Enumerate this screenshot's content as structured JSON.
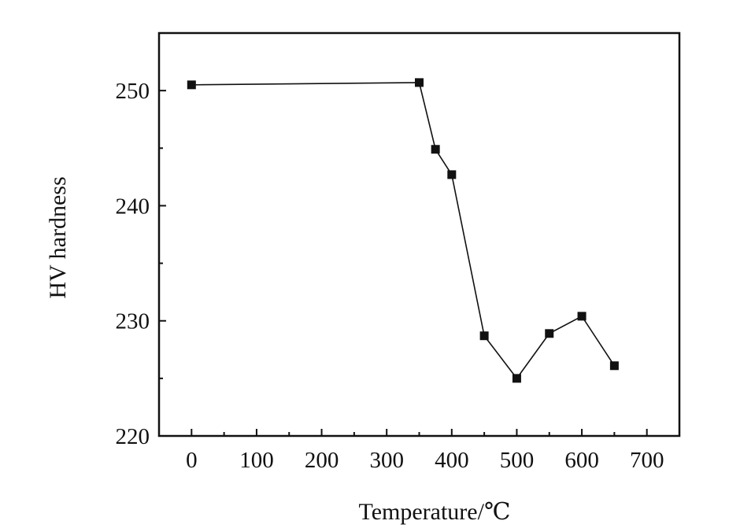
{
  "chart_data": {
    "type": "line",
    "title": "",
    "xlabel": "Temperature/℃",
    "ylabel": "HV hardness",
    "xlim": [
      -50,
      750
    ],
    "ylim": [
      220,
      255
    ],
    "x_ticks": [
      0,
      100,
      200,
      300,
      400,
      500,
      600,
      700
    ],
    "x_tick_labels": [
      "0",
      "100",
      "200",
      "300",
      "400",
      "500",
      "600",
      "700"
    ],
    "y_ticks": [
      220,
      230,
      240,
      250
    ],
    "y_tick_labels": [
      "220",
      "230",
      "240",
      "250"
    ],
    "grid": false,
    "legend": "none",
    "series": [
      {
        "marker": "square",
        "color": "#111111",
        "x": [
          0,
          350,
          375,
          400,
          450,
          500,
          550,
          600,
          650
        ],
        "y": [
          250.5,
          250.7,
          244.9,
          242.7,
          228.7,
          225.0,
          228.9,
          230.4,
          226.1
        ]
      }
    ]
  }
}
